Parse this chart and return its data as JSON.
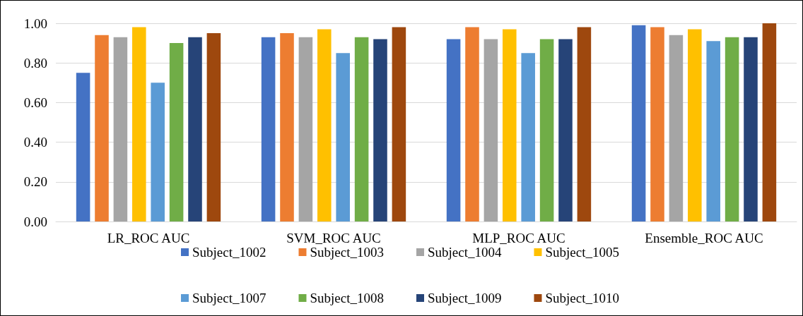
{
  "chart_data": {
    "type": "bar",
    "categories": [
      "LR_ROC AUC",
      "SVM_ROC AUC",
      "MLP_ROC AUC",
      "Ensemble_ROC AUC"
    ],
    "series": [
      {
        "name": "Subject_1002",
        "color": "#4472c4",
        "values": [
          0.75,
          0.93,
          0.92,
          0.99
        ]
      },
      {
        "name": "Subject_1003",
        "color": "#ed7d31",
        "values": [
          0.94,
          0.95,
          0.98,
          0.98
        ]
      },
      {
        "name": "Subject_1004",
        "color": "#a5a5a5",
        "values": [
          0.93,
          0.93,
          0.92,
          0.94
        ]
      },
      {
        "name": "Subject_1005",
        "color": "#ffc000",
        "values": [
          0.98,
          0.97,
          0.97,
          0.97
        ]
      },
      {
        "name": "Subject_1007",
        "color": "#5b9bd5",
        "values": [
          0.7,
          0.85,
          0.85,
          0.91
        ]
      },
      {
        "name": "Subject_1008",
        "color": "#70ad47",
        "values": [
          0.9,
          0.93,
          0.92,
          0.93
        ]
      },
      {
        "name": "Subject_1009",
        "color": "#264478",
        "values": [
          0.93,
          0.92,
          0.92,
          0.93
        ]
      },
      {
        "name": "Subject_1010",
        "color": "#9e480e",
        "values": [
          0.95,
          0.98,
          0.98,
          1.0
        ]
      }
    ],
    "ylim": [
      0,
      1
    ],
    "yticks": [
      {
        "value": 0,
        "label": "0.00"
      },
      {
        "value": 0.2,
        "label": "0.20"
      },
      {
        "value": 0.4,
        "label": "0.40"
      },
      {
        "value": 0.6,
        "label": "0.60"
      },
      {
        "value": 0.8,
        "label": "0.80"
      },
      {
        "value": 1,
        "label": "1.00"
      }
    ],
    "grid": "y",
    "legend": "bottom"
  }
}
